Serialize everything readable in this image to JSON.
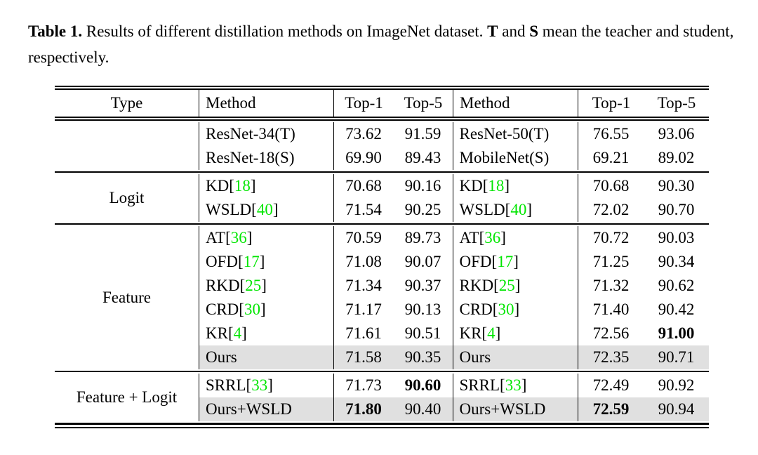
{
  "caption": {
    "segments": [
      {
        "text": "Table 1.",
        "bold": true
      },
      {
        "text": " Results of different distillation methods on ImageNet dataset. ",
        "bold": false
      },
      {
        "text": "T",
        "bold": true
      },
      {
        "text": " and ",
        "bold": false
      },
      {
        "text": "S",
        "bold": true
      },
      {
        "text": " mean the teacher and student, respectively.",
        "bold": false
      }
    ]
  },
  "colors": {
    "citation_green": "#00e600",
    "row_highlight": "#e0e0e0",
    "text": "#000000"
  },
  "table": {
    "header": {
      "type": "Type",
      "method_left": "Method",
      "top1_left": "Top-1",
      "top5_left": "Top-5",
      "method_right": "Method",
      "top1_right": "Top-1",
      "top5_right": "Top-5"
    },
    "sections": [
      {
        "type_label": "",
        "rows": [
          {
            "hl": false,
            "m1": {
              "t": "ResNet-34(T)"
            },
            "v1": {
              "v": "73.62"
            },
            "v2": {
              "v": "91.59"
            },
            "m2": {
              "t": "ResNet-50(T)"
            },
            "v3": {
              "v": "76.55"
            },
            "v4": {
              "v": "93.06"
            }
          },
          {
            "hl": false,
            "m1": {
              "t": "ResNet-18(S)"
            },
            "v1": {
              "v": "69.90"
            },
            "v2": {
              "v": "89.43"
            },
            "m2": {
              "t": "MobileNet(S)"
            },
            "v3": {
              "v": "69.21"
            },
            "v4": {
              "v": "89.02"
            }
          }
        ]
      },
      {
        "type_label": "Logit",
        "rows": [
          {
            "hl": false,
            "m1": {
              "t": "KD",
              "cite": "18"
            },
            "v1": {
              "v": "70.68"
            },
            "v2": {
              "v": "90.16"
            },
            "m2": {
              "t": "KD",
              "cite": "18"
            },
            "v3": {
              "v": "70.68"
            },
            "v4": {
              "v": "90.30"
            }
          },
          {
            "hl": false,
            "m1": {
              "t": "WSLD",
              "cite": "40"
            },
            "v1": {
              "v": "71.54"
            },
            "v2": {
              "v": "90.25"
            },
            "m2": {
              "t": "WSLD",
              "cite": "40"
            },
            "v3": {
              "v": "72.02"
            },
            "v4": {
              "v": "90.70"
            }
          }
        ]
      },
      {
        "type_label": "Feature",
        "rows": [
          {
            "hl": false,
            "m1": {
              "t": "AT",
              "cite": "36"
            },
            "v1": {
              "v": "70.59"
            },
            "v2": {
              "v": "89.73"
            },
            "m2": {
              "t": "AT",
              "cite": "36"
            },
            "v3": {
              "v": "70.72"
            },
            "v4": {
              "v": "90.03"
            }
          },
          {
            "hl": false,
            "m1": {
              "t": "OFD",
              "cite": "17"
            },
            "v1": {
              "v": "71.08"
            },
            "v2": {
              "v": "90.07"
            },
            "m2": {
              "t": "OFD",
              "cite": "17"
            },
            "v3": {
              "v": "71.25"
            },
            "v4": {
              "v": "90.34"
            }
          },
          {
            "hl": false,
            "m1": {
              "t": "RKD",
              "cite": "25"
            },
            "v1": {
              "v": "71.34"
            },
            "v2": {
              "v": "90.37"
            },
            "m2": {
              "t": "RKD",
              "cite": "25"
            },
            "v3": {
              "v": "71.32"
            },
            "v4": {
              "v": "90.62"
            }
          },
          {
            "hl": false,
            "m1": {
              "t": "CRD",
              "cite": "30"
            },
            "v1": {
              "v": "71.17"
            },
            "v2": {
              "v": "90.13"
            },
            "m2": {
              "t": "CRD",
              "cite": "30"
            },
            "v3": {
              "v": "71.40"
            },
            "v4": {
              "v": "90.42"
            }
          },
          {
            "hl": false,
            "m1": {
              "t": "KR",
              "cite": "4"
            },
            "v1": {
              "v": "71.61"
            },
            "v2": {
              "v": "90.51"
            },
            "m2": {
              "t": "KR",
              "cite": "4"
            },
            "v3": {
              "v": "72.56"
            },
            "v4": {
              "v": "91.00",
              "b": true
            }
          },
          {
            "hl": true,
            "m1": {
              "t": "Ours"
            },
            "v1": {
              "v": "71.58"
            },
            "v2": {
              "v": "90.35"
            },
            "m2": {
              "t": "Ours"
            },
            "v3": {
              "v": "72.35"
            },
            "v4": {
              "v": "90.71"
            }
          }
        ]
      },
      {
        "type_label": "Feature + Logit",
        "rows": [
          {
            "hl": false,
            "m1": {
              "t": "SRRL",
              "cite": "33"
            },
            "v1": {
              "v": "71.73"
            },
            "v2": {
              "v": "90.60",
              "b": true
            },
            "m2": {
              "t": "SRRL",
              "cite": "33"
            },
            "v3": {
              "v": "72.49"
            },
            "v4": {
              "v": "90.92"
            }
          },
          {
            "hl": true,
            "m1": {
              "t": "Ours+WSLD"
            },
            "v1": {
              "v": "71.80",
              "b": true
            },
            "v2": {
              "v": "90.40"
            },
            "m2": {
              "t": "Ours+WSLD"
            },
            "v3": {
              "v": "72.59",
              "b": true
            },
            "v4": {
              "v": "90.94"
            }
          }
        ]
      }
    ]
  }
}
